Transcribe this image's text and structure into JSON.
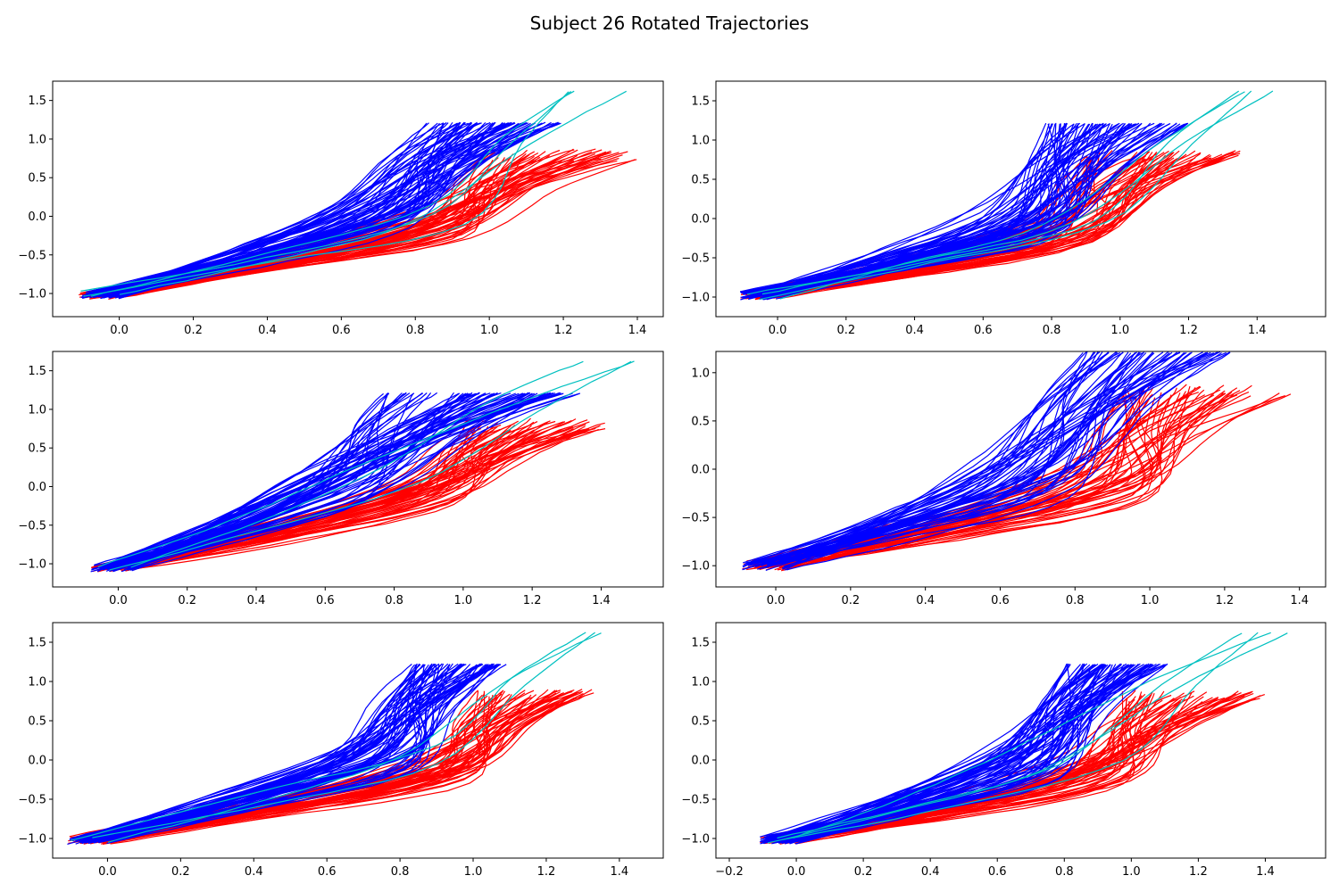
{
  "figure": {
    "title": "Subject 26 Rotated Trajectories"
  },
  "chart_data": [
    {
      "type": "line",
      "title": "",
      "xlabel": "",
      "ylabel": "",
      "xlim": [
        -0.18,
        1.47
      ],
      "ylim": [
        -1.3,
        1.75
      ],
      "xticks": [
        0.0,
        0.2,
        0.4,
        0.6,
        0.8,
        1.0,
        1.2,
        1.4
      ],
      "yticks": [
        -1.0,
        -0.5,
        0.0,
        0.5,
        1.0,
        1.5
      ],
      "start": [
        -0.05,
        -1.02
      ],
      "colors": {
        "blue": "#0000ff",
        "red": "#ff0000",
        "cyan": "#00c0c0"
      },
      "groups": [
        {
          "color": "blue",
          "count": 70,
          "end_x": [
            0.82,
            1.2
          ],
          "end_y": 1.21,
          "knee_x": [
            0.55,
            0.8
          ],
          "knee_y": [
            -0.15,
            0.15
          ]
        },
        {
          "color": "red",
          "count": 55,
          "end_x": [
            0.98,
            1.4
          ],
          "end_y": [
            0.72,
            0.88
          ],
          "knee_x": [
            0.75,
            0.95
          ],
          "knee_y": [
            -0.3,
            0.05
          ]
        },
        {
          "color": "cyan",
          "count": 4,
          "end_x": [
            1.2,
            1.38
          ],
          "end_y": 1.62,
          "knee_x": [
            0.7,
            0.95
          ],
          "knee_y": [
            -0.1,
            0.2
          ]
        }
      ]
    },
    {
      "type": "line",
      "title": "",
      "xlabel": "",
      "ylabel": "",
      "xlim": [
        -0.18,
        1.6
      ],
      "ylim": [
        -1.25,
        1.75
      ],
      "xticks": [
        0.0,
        0.2,
        0.4,
        0.6,
        0.8,
        1.0,
        1.2,
        1.4
      ],
      "yticks": [
        -1.0,
        -0.5,
        0.0,
        0.5,
        1.0,
        1.5
      ],
      "start": [
        -0.05,
        -0.98
      ],
      "colors": {
        "blue": "#0000ff",
        "red": "#ff0000",
        "cyan": "#00c0c0"
      },
      "groups": [
        {
          "color": "blue",
          "count": 70,
          "end_x": [
            0.78,
            1.2
          ],
          "end_y": 1.21,
          "knee_x": [
            0.55,
            0.85
          ],
          "knee_y": [
            -0.25,
            0.1
          ]
        },
        {
          "color": "red",
          "count": 55,
          "end_x": [
            0.9,
            1.36
          ],
          "end_y": [
            0.76,
            0.88
          ],
          "knee_x": [
            0.7,
            0.95
          ],
          "knee_y": [
            -0.35,
            -0.05
          ]
        },
        {
          "color": "cyan",
          "count": 4,
          "end_x": [
            1.28,
            1.52
          ],
          "end_y": 1.62,
          "knee_x": [
            0.75,
            1.0
          ],
          "knee_y": [
            -0.2,
            0.1
          ]
        }
      ]
    },
    {
      "type": "line",
      "title": "",
      "xlabel": "",
      "ylabel": "",
      "xlim": [
        -0.19,
        1.58
      ],
      "ylim": [
        -1.3,
        1.75
      ],
      "xticks": [
        0.0,
        0.2,
        0.4,
        0.6,
        0.8,
        1.0,
        1.2,
        1.4
      ],
      "yticks": [
        -1.0,
        -0.5,
        0.0,
        0.5,
        1.0,
        1.5
      ],
      "start": [
        -0.02,
        -1.05
      ],
      "colors": {
        "blue": "#0000ff",
        "red": "#ff0000",
        "cyan": "#00c0c0"
      },
      "groups": [
        {
          "color": "blue",
          "count": 70,
          "end_x": [
            0.75,
            1.35
          ],
          "end_y": 1.21,
          "knee_x": [
            0.5,
            0.8
          ],
          "knee_y": [
            -0.2,
            0.2
          ]
        },
        {
          "color": "red",
          "count": 55,
          "end_x": [
            1.0,
            1.42
          ],
          "end_y": [
            0.72,
            0.88
          ],
          "knee_x": [
            0.75,
            1.0
          ],
          "knee_y": [
            -0.25,
            0.1
          ]
        },
        {
          "color": "cyan",
          "count": 3,
          "end_x": [
            1.28,
            1.5
          ],
          "end_y": 1.62,
          "knee_x": [
            0.55,
            0.9
          ],
          "knee_y": [
            -0.1,
            0.3
          ]
        }
      ]
    },
    {
      "type": "line",
      "title": "",
      "xlabel": "",
      "ylabel": "",
      "xlim": [
        -0.16,
        1.47
      ],
      "ylim": [
        -1.22,
        1.22
      ],
      "xticks": [
        0.0,
        0.2,
        0.4,
        0.6,
        0.8,
        1.0,
        1.2,
        1.4
      ],
      "yticks": [
        -1.0,
        -0.5,
        0.0,
        0.5,
        1.0
      ],
      "start": [
        -0.03,
        -1.0
      ],
      "colors": {
        "blue": "#0000ff",
        "red": "#ff0000",
        "cyan": "#00c0c0"
      },
      "groups": [
        {
          "color": "blue",
          "count": 55,
          "end_x": [
            0.82,
            1.22
          ],
          "end_y": 1.21,
          "knee_x": [
            0.5,
            0.8
          ],
          "knee_y": [
            -0.3,
            0.1
          ]
        },
        {
          "color": "red",
          "count": 50,
          "end_x": [
            0.92,
            1.38
          ],
          "end_y": [
            0.74,
            0.88
          ],
          "knee_x": [
            0.7,
            1.0
          ],
          "knee_y": [
            -0.35,
            0.0
          ]
        }
      ]
    },
    {
      "type": "line",
      "title": "",
      "xlabel": "",
      "ylabel": "",
      "xlim": [
        -0.15,
        1.52
      ],
      "ylim": [
        -1.25,
        1.75
      ],
      "xticks": [
        0.0,
        0.2,
        0.4,
        0.6,
        0.8,
        1.0,
        1.2,
        1.4
      ],
      "yticks": [
        -1.0,
        -0.5,
        0.0,
        0.5,
        1.0,
        1.5
      ],
      "start": [
        -0.05,
        -1.02
      ],
      "colors": {
        "blue": "#0000ff",
        "red": "#ff0000",
        "cyan": "#00c0c0"
      },
      "groups": [
        {
          "color": "blue",
          "count": 70,
          "end_x": [
            0.83,
            1.1
          ],
          "end_y": 1.22,
          "knee_x": [
            0.6,
            0.85
          ],
          "knee_y": [
            -0.15,
            0.15
          ]
        },
        {
          "color": "red",
          "count": 55,
          "end_x": [
            1.0,
            1.33
          ],
          "end_y": [
            0.78,
            0.9
          ],
          "knee_x": [
            0.8,
            1.0
          ],
          "knee_y": [
            -0.3,
            0.0
          ]
        },
        {
          "color": "cyan",
          "count": 3,
          "end_x": [
            1.3,
            1.44
          ],
          "end_y": 1.62,
          "knee_x": [
            0.6,
            0.95
          ],
          "knee_y": [
            -0.1,
            0.2
          ]
        }
      ]
    },
    {
      "type": "line",
      "title": "",
      "xlabel": "",
      "ylabel": "",
      "xlim": [
        -0.24,
        1.58
      ],
      "ylim": [
        -1.25,
        1.75
      ],
      "xticks": [
        -0.2,
        0.0,
        0.2,
        0.4,
        0.6,
        0.8,
        1.0,
        1.2,
        1.4
      ],
      "yticks": [
        -1.0,
        -0.5,
        0.0,
        0.5,
        1.0,
        1.5
      ],
      "start": [
        -0.05,
        -1.02
      ],
      "colors": {
        "blue": "#0000ff",
        "red": "#ff0000",
        "cyan": "#00c0c0"
      },
      "groups": [
        {
          "color": "blue",
          "count": 70,
          "end_x": [
            0.8,
            1.12
          ],
          "end_y": 1.22,
          "knee_x": [
            0.55,
            0.8
          ],
          "knee_y": [
            -0.25,
            0.15
          ]
        },
        {
          "color": "red",
          "count": 55,
          "end_x": [
            0.95,
            1.4
          ],
          "end_y": [
            0.74,
            0.88
          ],
          "knee_x": [
            0.75,
            1.0
          ],
          "knee_y": [
            -0.35,
            0.0
          ]
        },
        {
          "color": "cyan",
          "count": 4,
          "end_x": [
            1.28,
            1.5
          ],
          "end_y": 1.62,
          "knee_x": [
            0.6,
            1.0
          ],
          "knee_y": [
            -0.15,
            0.2
          ]
        }
      ]
    }
  ]
}
